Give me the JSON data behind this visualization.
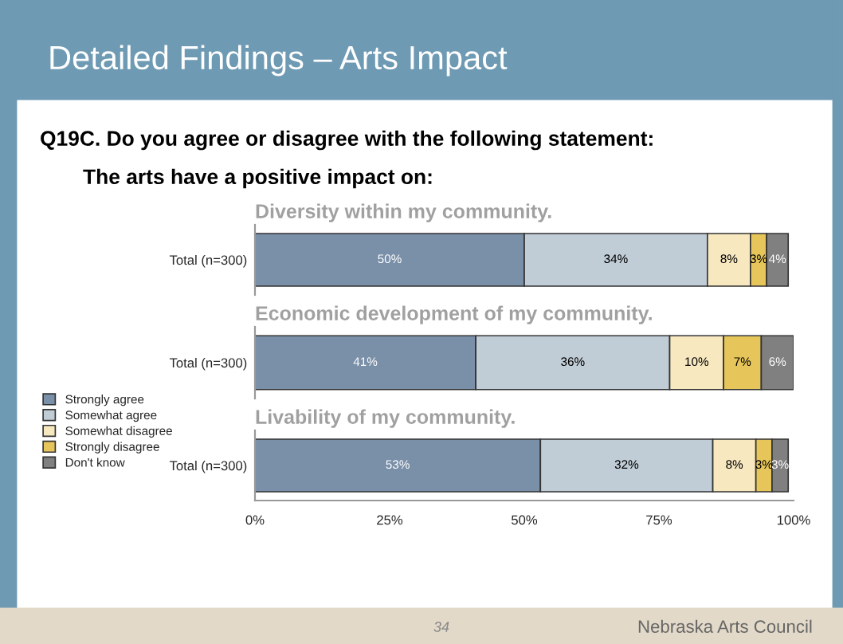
{
  "chart_data": [
    {
      "type": "bar",
      "orientation": "horizontal",
      "stacked": true,
      "title": "Diversity within my community.",
      "categories": [
        "Total (n=300)"
      ],
      "xlim": [
        0,
        100
      ],
      "tick_labels": "y",
      "annotations": [
        "Detailed Findings – Arts Impact",
        "Q19C. Do you agree or disagree with the following statement:",
        "The arts have a positive impact on:"
      ],
      "series": [
        {
          "color": "#7a8fa8",
          "values": [
            50
          ],
          "value_labels": [
            "50%"
          ]
        },
        {
          "color": "#c0ccd6",
          "values": [
            34
          ],
          "value_labels": [
            "34%"
          ]
        },
        {
          "color": "#f7e8c0",
          "values": [
            8
          ],
          "value_labels": [
            "8%"
          ]
        },
        {
          "color": "#e6c65a",
          "values": [
            3
          ],
          "value_labels": [
            "3%"
          ]
        },
        {
          "color": "#808080",
          "values": [
            4
          ],
          "value_labels": [
            "4%"
          ]
        }
      ]
    },
    {
      "type": "bar",
      "orientation": "horizontal",
      "stacked": true,
      "title": "Economic development of my community.",
      "categories": [
        "Total (n=300)"
      ],
      "xlim": [
        0,
        100
      ],
      "tick_labels": "y",
      "legend": "left",
      "series": [
        {
          "name": "Strongly agree",
          "color": "#7a8fa8",
          "values": [
            41
          ],
          "value_labels": [
            "41%"
          ]
        },
        {
          "name": "Somewhat agree",
          "color": "#c0ccd6",
          "values": [
            36
          ],
          "value_labels": [
            "36%"
          ]
        },
        {
          "name": "Somewhat disagree",
          "color": "#f7e8c0",
          "values": [
            10
          ],
          "value_labels": [
            "10%"
          ]
        },
        {
          "name": "Strongly disagree",
          "color": "#e6c65a",
          "values": [
            7
          ],
          "value_labels": [
            "7%"
          ]
        },
        {
          "name": "Don't know",
          "color": "#808080",
          "values": [
            6
          ],
          "value_labels": [
            "6%"
          ]
        }
      ]
    },
    {
      "type": "bar",
      "orientation": "horizontal",
      "stacked": true,
      "title": "Livability of my community.",
      "categories": [
        "Total (n=300)"
      ],
      "xlim": [
        0,
        100
      ],
      "xticks": [
        {
          "value": 0,
          "label": "0%"
        },
        {
          "value": 25,
          "label": "25%"
        },
        {
          "value": 50,
          "label": "50%"
        },
        {
          "value": 75,
          "label": "75%"
        },
        {
          "value": 100,
          "label": "100%"
        }
      ],
      "annotations": [
        "34",
        "Nebraska Arts Council"
      ],
      "series": [
        {
          "color": "#7a8fa8",
          "values": [
            53
          ],
          "value_labels": [
            "53%"
          ]
        },
        {
          "color": "#c0ccd6",
          "values": [
            32
          ],
          "value_labels": [
            "32%"
          ]
        },
        {
          "color": "#f7e8c0",
          "values": [
            8
          ],
          "value_labels": [
            "8%"
          ]
        },
        {
          "color": "#e6c65a",
          "values": [
            3
          ],
          "value_labels": [
            "3%"
          ]
        },
        {
          "color": "#808080",
          "values": [
            3
          ],
          "value_labels": [
            "3%"
          ]
        }
      ]
    }
  ]
}
